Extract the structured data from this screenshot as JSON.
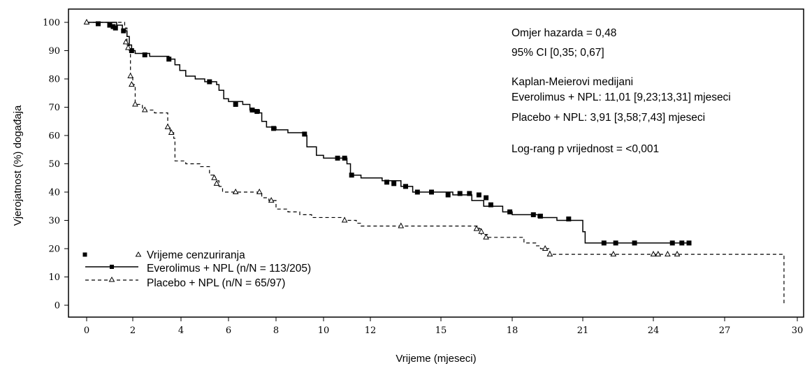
{
  "chart_data": {
    "type": "line",
    "title": "",
    "xlabel": "Vrijeme (mjeseci)",
    "ylabel": "Vjerojatnost (%) događaja",
    "xlim": [
      0,
      30
    ],
    "ylim": [
      0,
      100
    ],
    "x_ticks": [
      0,
      2,
      4,
      6,
      8,
      10,
      12,
      15,
      18,
      21,
      24,
      27,
      30
    ],
    "y_ticks": [
      0,
      10,
      20,
      30,
      40,
      50,
      60,
      70,
      80,
      90,
      100
    ],
    "x_tick_labels": [
      "0",
      "2",
      "4",
      "6",
      "8",
      "10",
      "12",
      "15",
      "18",
      "21",
      "24",
      "27",
      "30"
    ],
    "y_tick_labels": [
      "0",
      "10",
      "20",
      "30",
      "40",
      "50",
      "60",
      "70",
      "80",
      "90",
      "100"
    ],
    "grid": false,
    "annotations": [
      "Omjer hazarda = 0,48",
      "95% CI [0,35; 0,67]",
      "Kaplan-Meierovi medijani",
      "Everolimus + NPL: 11,01 [9,23;13,31] mjeseci",
      "Placebo + NPL: 3,91 [3,58;7,43] mjeseci",
      "Log-rang p vrijednost = <0,001"
    ],
    "legend": {
      "placement": "bottom-left",
      "censor_label": "Vrijeme cenzuriranja",
      "entries": [
        "Everolimus + NPL (n/N = 113/205)",
        "Placebo + NPL (n/N = 65/97)"
      ]
    },
    "series": [
      {
        "name": "Everolimus + NPL (n/N = 113/205)",
        "line_style": "solid",
        "marker": "square",
        "steps": [
          [
            0,
            100
          ],
          [
            1.3,
            99
          ],
          [
            1.55,
            97
          ],
          [
            1.75,
            95
          ],
          [
            1.85,
            92
          ],
          [
            1.95,
            90
          ],
          [
            2.1,
            89
          ],
          [
            2.7,
            88
          ],
          [
            3.5,
            87
          ],
          [
            3.75,
            85
          ],
          [
            3.95,
            83
          ],
          [
            4.2,
            81
          ],
          [
            4.6,
            80
          ],
          [
            5.0,
            79
          ],
          [
            5.5,
            78
          ],
          [
            5.6,
            76
          ],
          [
            5.8,
            73
          ],
          [
            6.0,
            72
          ],
          [
            6.6,
            71
          ],
          [
            6.9,
            69
          ],
          [
            7.3,
            68
          ],
          [
            7.4,
            65
          ],
          [
            7.6,
            63
          ],
          [
            8.0,
            62
          ],
          [
            8.5,
            61
          ],
          [
            9.2,
            60
          ],
          [
            9.3,
            56
          ],
          [
            9.7,
            53
          ],
          [
            10.0,
            52
          ],
          [
            11.0,
            50
          ],
          [
            11.15,
            46
          ],
          [
            11.6,
            45
          ],
          [
            12.5,
            44
          ],
          [
            13.3,
            42
          ],
          [
            13.8,
            40
          ],
          [
            14.5,
            40
          ],
          [
            15.5,
            39
          ],
          [
            16.3,
            37
          ],
          [
            16.8,
            35
          ],
          [
            17.1,
            35
          ],
          [
            17.6,
            33
          ],
          [
            18.0,
            32
          ],
          [
            19.1,
            31
          ],
          [
            19.9,
            30
          ],
          [
            21.0,
            26
          ],
          [
            21.1,
            22
          ],
          [
            25.5,
            22
          ]
        ],
        "censored": [
          [
            0.5,
            99.5
          ],
          [
            1.0,
            99
          ],
          [
            1.15,
            98.5
          ],
          [
            1.25,
            98
          ],
          [
            1.6,
            97
          ],
          [
            1.95,
            90
          ],
          [
            2.5,
            88.5
          ],
          [
            3.5,
            87
          ],
          [
            5.2,
            79
          ],
          [
            6.3,
            71
          ],
          [
            7.0,
            69
          ],
          [
            7.2,
            68.5
          ],
          [
            7.9,
            62.5
          ],
          [
            9.2,
            60.5
          ],
          [
            10.6,
            52
          ],
          [
            10.9,
            52
          ],
          [
            11.2,
            46
          ],
          [
            12.7,
            43.5
          ],
          [
            13.0,
            43
          ],
          [
            13.5,
            42
          ],
          [
            14.0,
            40
          ],
          [
            14.6,
            40
          ],
          [
            15.3,
            39
          ],
          [
            15.8,
            39.5
          ],
          [
            16.2,
            39.5
          ],
          [
            16.6,
            39
          ],
          [
            16.9,
            38
          ],
          [
            17.1,
            35.5
          ],
          [
            17.9,
            33
          ],
          [
            18.9,
            32
          ],
          [
            19.2,
            31.5
          ],
          [
            20.4,
            30.5
          ],
          [
            21.9,
            22
          ],
          [
            22.4,
            22
          ],
          [
            23.2,
            22
          ],
          [
            24.8,
            22
          ],
          [
            25.2,
            22
          ],
          [
            25.5,
            22
          ]
        ]
      },
      {
        "name": "Placebo + NPL (n/N = 65/97)",
        "line_style": "dashed",
        "marker": "triangle",
        "steps": [
          [
            0,
            100
          ],
          [
            1.65,
            98
          ],
          [
            1.75,
            92
          ],
          [
            1.85,
            90
          ],
          [
            1.9,
            81
          ],
          [
            2.0,
            78
          ],
          [
            2.1,
            71
          ],
          [
            2.4,
            69
          ],
          [
            2.9,
            68
          ],
          [
            3.45,
            63
          ],
          [
            3.55,
            61
          ],
          [
            3.7,
            59
          ],
          [
            3.75,
            51
          ],
          [
            4.2,
            50
          ],
          [
            4.8,
            49
          ],
          [
            5.2,
            46
          ],
          [
            5.45,
            44
          ],
          [
            5.6,
            42
          ],
          [
            5.75,
            40
          ],
          [
            6.5,
            40
          ],
          [
            7.4,
            38
          ],
          [
            7.7,
            37
          ],
          [
            8.0,
            34
          ],
          [
            8.5,
            33
          ],
          [
            9.0,
            32
          ],
          [
            9.5,
            31
          ],
          [
            10.5,
            31
          ],
          [
            10.9,
            30
          ],
          [
            11.4,
            29
          ],
          [
            11.6,
            28
          ],
          [
            13.0,
            28
          ],
          [
            16.6,
            27
          ],
          [
            16.7,
            25
          ],
          [
            17.0,
            24
          ],
          [
            18.5,
            22
          ],
          [
            19.0,
            21
          ],
          [
            19.2,
            20
          ],
          [
            19.6,
            18
          ],
          [
            24.0,
            18
          ],
          [
            29.4,
            18
          ],
          [
            29.45,
            0
          ]
        ],
        "censored": [
          [
            0,
            100
          ],
          [
            1.7,
            93
          ],
          [
            1.8,
            91
          ],
          [
            1.9,
            81
          ],
          [
            1.95,
            78
          ],
          [
            2.1,
            71
          ],
          [
            2.5,
            69
          ],
          [
            3.45,
            63
          ],
          [
            3.6,
            61
          ],
          [
            5.4,
            45
          ],
          [
            5.5,
            43
          ],
          [
            6.3,
            40
          ],
          [
            7.3,
            40
          ],
          [
            7.8,
            37
          ],
          [
            10.9,
            30
          ],
          [
            13.3,
            28
          ],
          [
            16.5,
            27
          ],
          [
            16.7,
            26
          ],
          [
            16.9,
            24
          ],
          [
            19.4,
            20
          ],
          [
            19.6,
            18
          ],
          [
            22.3,
            18
          ],
          [
            24.0,
            18
          ],
          [
            24.2,
            18
          ],
          [
            24.6,
            18
          ],
          [
            25.0,
            18
          ]
        ]
      }
    ]
  }
}
